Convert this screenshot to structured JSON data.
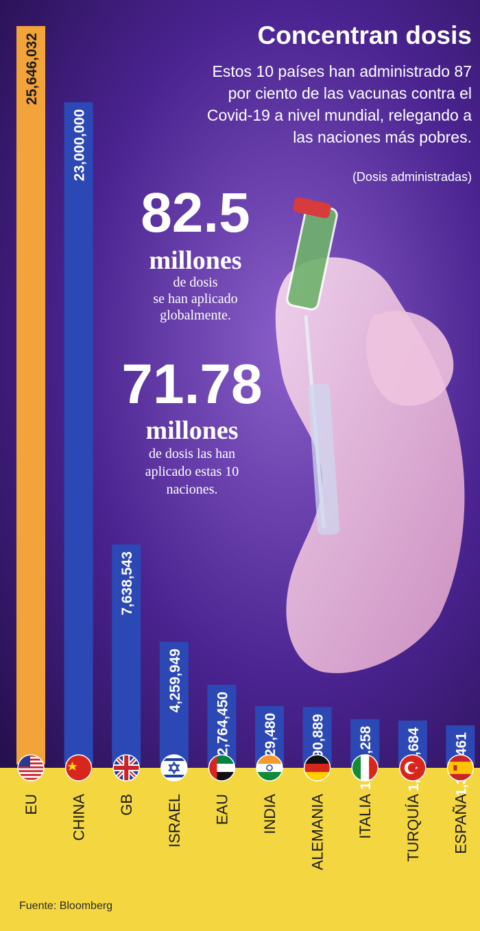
{
  "header": {
    "title": "Concentran dosis",
    "description_lines": [
      "Estos 10 países han administrado 87",
      "por ciento de las vacunas contra el",
      "Covid-19 a nivel mundial, relegando a",
      "las naciones más pobres."
    ],
    "unit_note": "(Dosis administradas)"
  },
  "stats": {
    "global": {
      "number": "82.5",
      "unit": "millones",
      "caption_lines": [
        "de dosis",
        "se han aplicado",
        "globalmente."
      ]
    },
    "top10": {
      "number": "71.78",
      "unit": "millones",
      "caption_lines": [
        "de dosis las han",
        "aplicado estas 10",
        "naciones."
      ]
    }
  },
  "source": "Fuente: Bloomberg",
  "colors": {
    "highlight_bar": "#f2a33a",
    "bar": "#2c48b5",
    "label_band": "#f4d640",
    "background": "#4a1f86"
  },
  "chart_data": {
    "type": "bar",
    "orientation": "vertical",
    "categories": [
      "EU",
      "CHINA",
      "GB",
      "ISRAEL",
      "EAU",
      "INDIA",
      "ALEMANIA",
      "ITALIA",
      "TURQUÍA",
      "ESPAÑA"
    ],
    "values": [
      25646032,
      23000000,
      7638543,
      4259949,
      2764450,
      2029480,
      1990889,
      1575258,
      1522684,
      1356461
    ],
    "value_labels": [
      "25,646,032",
      "23,000,000",
      "7,638,543",
      "4,259,949",
      "2,764,450",
      "2,029,480",
      "1,990,889",
      "1,575,258",
      "1,522,684",
      "1,356,461"
    ],
    "flag_icons": [
      "usa-flag-icon",
      "china-flag-icon",
      "uk-flag-icon",
      "israel-flag-icon",
      "uae-flag-icon",
      "india-flag-icon",
      "germany-flag-icon",
      "italy-flag-icon",
      "turkey-flag-icon",
      "spain-flag-icon"
    ],
    "highlight_index": 0,
    "ylim": [
      0,
      25646032
    ],
    "grid": false,
    "legend": "none"
  }
}
